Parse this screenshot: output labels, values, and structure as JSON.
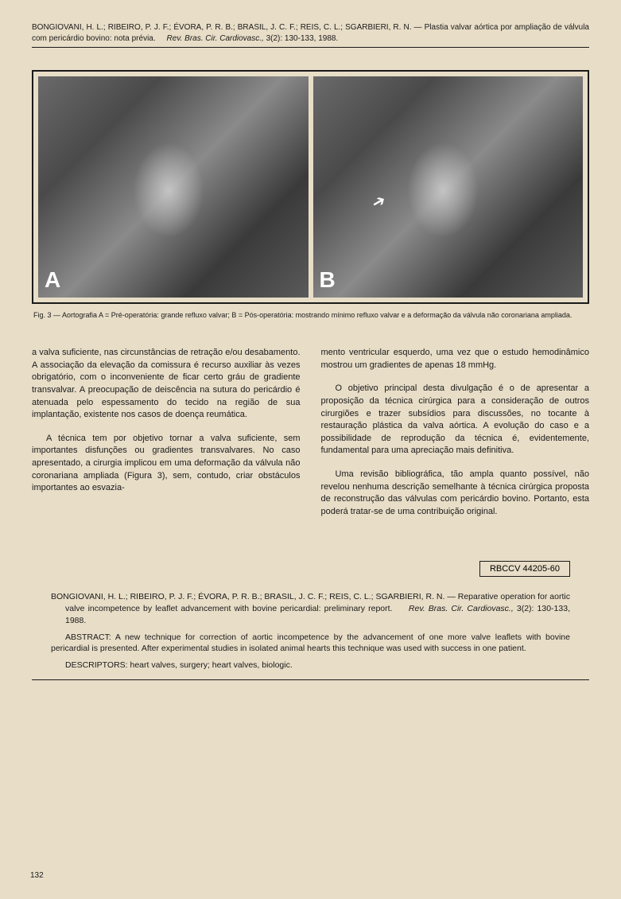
{
  "header": {
    "citation_authors": "BONGIOVANI, H. L.; RIBEIRO, P. J. F.; ÉVORA, P. R. B.; BRASIL, J. C. F.; REIS, C. L.; SGARBIERI, R. N. — Plastia valvar aórtica por ampliação de válvula com pericárdio bovino: nota prévia.",
    "citation_journal": "Rev. Bras. Cir. Cardiovasc.,",
    "citation_ref": "3(2): 130-133, 1988."
  },
  "figure": {
    "panel_a_label": "A",
    "panel_b_label": "B",
    "caption_prefix": "Fig. 3 — Aortografia A = Pré-operatória: grande refluxo valvar; B = Pós-operatória: mostrando mínimo refluxo valvar e a deformação da válvula não coronariana ampliada."
  },
  "body": {
    "left": {
      "p1": "a valva suficiente, nas circunstâncias de retração e/ou desabamento. A associação da elevação da comissura é recurso auxiliar às vezes obrigatório, com o inconveniente de ficar certo gráu de gradiente transvalvar. A preocupação de deiscência na sutura do pericárdio é atenuada pelo espessamento do tecido na região de sua implantação, existente nos casos de doença reumática.",
      "p2": "A técnica tem por objetivo tornar a valva suficiente, sem importantes disfunções ou gradientes transvalvares. No caso apresentado, a cirurgia implicou em uma deformação da válvula não coronariana ampliada (Figura 3), sem, contudo, criar obstáculos importantes ao esvazia-"
    },
    "right": {
      "p1": "mento ventricular esquerdo, uma vez que o estudo hemodinâmico mostrou um gradientes de apenas 18 mmHg.",
      "p2": "O objetivo principal desta divulgação é o de apresentar a proposição da técnica cirúrgica para a consideração de outros cirurgiões e trazer subsídios para discussões, no tocante à restauração plástica da valva aórtica. A evolução do caso e a possibilidade de reprodução da técnica é, evidentemente, fundamental para uma apreciação mais definitiva.",
      "p3": "Uma revisão bibliográfica, tão ampla quanto possível, não revelou nenhuma descrição semelhante à técnica cirúrgica proposta de reconstrução das válvulas com pericárdio bovino. Portanto, esta poderá tratar-se de uma contribuição original."
    }
  },
  "abstract": {
    "rbccv": "RBCCV 44205-60",
    "citation_authors": "BONGIOVANI, H. L.; RIBEIRO, P. J. F.; ÉVORA, P. R. B.; BRASIL, J. C. F.; REIS, C. L.; SGARBIERI, R. N. — Reparative operation for aortic valve incompetence by leaflet advancement with bovine pericardial: preliminary report.",
    "citation_journal": "Rev. Bras. Cir. Cardiovasc.,",
    "citation_ref": "3(2): 130-133, 1988.",
    "abstract_label": "ABSTRACT:",
    "abstract_text": "A new technique for correction of aortic incompetence by the advancement of one more valve leaflets with bovine pericardial is presented. After experimental studies in isolated animal hearts this technique was used with success in one patient.",
    "descriptors_label": "DESCRIPTORS:",
    "descriptors_text": "heart valves, surgery; heart valves, biologic."
  },
  "page_number": "132"
}
